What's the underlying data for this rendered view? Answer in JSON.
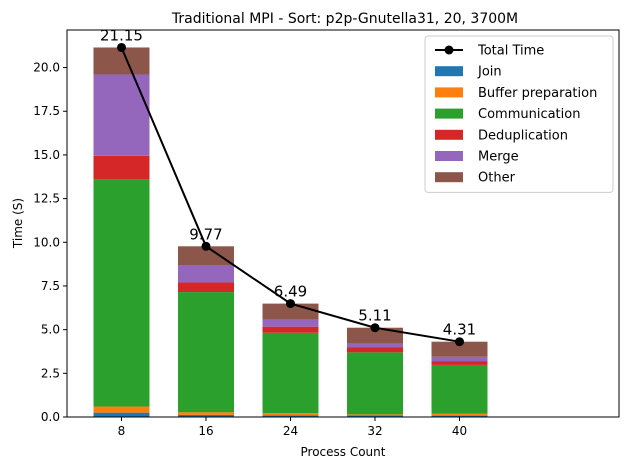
{
  "chart_data": {
    "type": "bar",
    "stacked": true,
    "title": "Traditional MPI - Sort: p2p-Gnutella31, 20, 3700M",
    "xlabel": "Process Count",
    "ylabel": "Time (S)",
    "categories": [
      "8",
      "16",
      "24",
      "32",
      "40"
    ],
    "ylim": [
      0,
      22.15
    ],
    "yticks": [
      "0.0",
      "2.5",
      "5.0",
      "7.5",
      "10.0",
      "12.5",
      "15.0",
      "17.5",
      "20.0"
    ],
    "ytick_values": [
      0,
      2.5,
      5,
      7.5,
      10,
      12.5,
      15,
      17.5,
      20
    ],
    "grid": false,
    "legend_position": "top-right",
    "series": [
      {
        "name": "Join",
        "color": "#1f77b4",
        "values": [
          0.25,
          0.12,
          0.1,
          0.1,
          0.08
        ]
      },
      {
        "name": "Buffer preparation",
        "color": "#ff7f0e",
        "values": [
          0.35,
          0.15,
          0.12,
          0.05,
          0.12
        ]
      },
      {
        "name": "Communication",
        "color": "#2ca02c",
        "values": [
          13.0,
          6.88,
          4.6,
          3.55,
          2.78
        ]
      },
      {
        "name": "Deduplication",
        "color": "#d62728",
        "values": [
          1.35,
          0.55,
          0.35,
          0.3,
          0.22
        ]
      },
      {
        "name": "Merge",
        "color": "#9467bd",
        "values": [
          4.65,
          1.0,
          0.4,
          0.2,
          0.25
        ]
      },
      {
        "name": "Other",
        "color": "#8c564b",
        "values": [
          1.55,
          1.07,
          0.92,
          0.91,
          0.86
        ]
      }
    ],
    "line": {
      "name": "Total Time",
      "color": "#000000",
      "values": [
        21.15,
        9.77,
        6.49,
        5.11,
        4.31
      ],
      "labels": [
        "21.15",
        "9.77",
        "6.49",
        "5.11",
        "4.31"
      ]
    }
  }
}
